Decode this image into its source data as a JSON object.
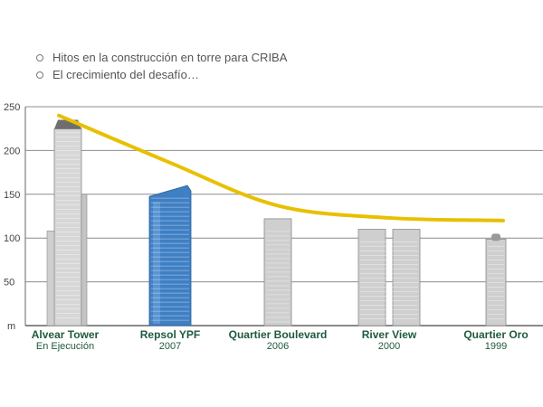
{
  "bullets": [
    "Hitos en la construcción en torre para CRIBA",
    "El crecimiento del desafío…"
  ],
  "chart_data": {
    "type": "bar",
    "ylabel": "m",
    "ylim": [
      0,
      250
    ],
    "yticks": [
      50,
      100,
      150,
      200,
      250
    ],
    "grid": true,
    "categories": [
      "Alvear Tower",
      "Repsol YPF",
      "Quartier Boulevard",
      "River View",
      "Quartier Oro"
    ],
    "sublabels": [
      "En Ejecución",
      "2007",
      "2006",
      "2000",
      "1999"
    ],
    "values": [
      235,
      160,
      122,
      110,
      105
    ],
    "trend": [
      {
        "category": "Alvear Tower",
        "value": 240
      },
      {
        "category": "Repsol YPF",
        "value": 186
      },
      {
        "category": "Quartier Boulevard",
        "value": 137
      },
      {
        "category": "River View",
        "value": 123
      },
      {
        "category": "Quartier Oro",
        "value": 120
      }
    ],
    "colors": {
      "trend": "#e8c000",
      "tower": "#cfcfcf",
      "glass": "#3f7fc4",
      "grid": "#8c8c8c",
      "label": "#1f5a3c"
    }
  }
}
